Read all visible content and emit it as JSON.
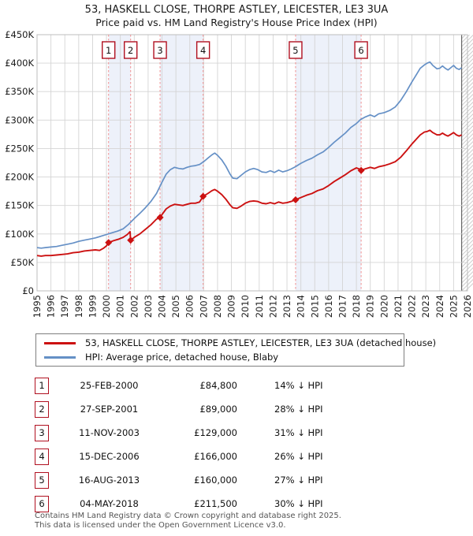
{
  "header": {
    "title_line1": "53, HASKELL CLOSE, THORPE ASTLEY, LEICESTER, LE3 3UA",
    "title_line2": "Price paid vs. HM Land Registry's House Price Index (HPI)"
  },
  "legend": {
    "items": [
      {
        "label": "53, HASKELL CLOSE, THORPE ASTLEY, LEICESTER, LE3 3UA (detached house)",
        "color": "#cc1111"
      },
      {
        "label": "HPI: Average price, detached house, Blaby",
        "color": "#6590c6"
      }
    ]
  },
  "table": {
    "rows": [
      {
        "num": "1",
        "date": "25-FEB-2000",
        "price": "£84,800",
        "hpi": "14% ↓ HPI"
      },
      {
        "num": "2",
        "date": "27-SEP-2001",
        "price": "£89,000",
        "hpi": "28% ↓ HPI"
      },
      {
        "num": "3",
        "date": "11-NOV-2003",
        "price": "£129,000",
        "hpi": "31% ↓ HPI"
      },
      {
        "num": "4",
        "date": "15-DEC-2006",
        "price": "£166,000",
        "hpi": "26% ↓ HPI"
      },
      {
        "num": "5",
        "date": "16-AUG-2013",
        "price": "£160,000",
        "hpi": "27% ↓ HPI"
      },
      {
        "num": "6",
        "date": "04-MAY-2018",
        "price": "£211,500",
        "hpi": "30% ↓ HPI"
      }
    ]
  },
  "footer": {
    "line1": "Contains HM Land Registry data © Crown copyright and database right 2025.",
    "line2": "This data is licensed under the Open Government Licence v3.0."
  },
  "chart_data": {
    "type": "line",
    "title": "53, HASKELL CLOSE, THORPE ASTLEY, LEICESTER, LE3 3UA — Price paid vs. HPI",
    "xlabel": "",
    "ylabel": "",
    "x_range": [
      1995,
      2026
    ],
    "y_range": [
      0,
      450
    ],
    "y_tick_step_k": 50,
    "y_tick_labels": [
      "£0",
      "£50K",
      "£100K",
      "£150K",
      "£200K",
      "£250K",
      "£300K",
      "£350K",
      "£400K",
      "£450K"
    ],
    "x_tick_labels": [
      "1995",
      "1996",
      "1997",
      "1998",
      "1999",
      "2000",
      "2001",
      "2002",
      "2003",
      "2004",
      "2005",
      "2006",
      "2007",
      "2008",
      "2009",
      "2010",
      "2011",
      "2012",
      "2013",
      "2014",
      "2015",
      "2016",
      "2017",
      "2018",
      "2019",
      "2020",
      "2021",
      "2022",
      "2023",
      "2024",
      "2025",
      "2026"
    ],
    "grid": true,
    "legend_position": "below",
    "future_hatch_start": 2025.58,
    "shaded_bands": [
      [
        2000.15,
        2001.74
      ],
      [
        2003.86,
        2006.96
      ],
      [
        2013.62,
        2018.34
      ]
    ],
    "sales": [
      {
        "num": "1",
        "year": 2000.15,
        "price_k": 84.8,
        "date": "25-FEB-2000",
        "pct_below_hpi": 14
      },
      {
        "num": "2",
        "year": 2001.74,
        "price_k": 89,
        "date": "27-SEP-2001",
        "pct_below_hpi": 28
      },
      {
        "num": "3",
        "year": 2003.86,
        "price_k": 129,
        "date": "11-NOV-2003",
        "pct_below_hpi": 31
      },
      {
        "num": "4",
        "year": 2006.96,
        "price_k": 166,
        "date": "15-DEC-2006",
        "pct_below_hpi": 26
      },
      {
        "num": "5",
        "year": 2013.62,
        "price_k": 160,
        "date": "16-AUG-2013",
        "pct_below_hpi": 27
      },
      {
        "num": "6",
        "year": 2018.34,
        "price_k": 211.5,
        "date": "04-MAY-2018",
        "pct_below_hpi": 30
      }
    ],
    "series": [
      {
        "name": "53, HASKELL CLOSE, THORPE ASTLEY, LEICESTER, LE3 3UA (detached house)",
        "color": "#cc1111",
        "points": [
          [
            1995.0,
            62
          ],
          [
            1995.3,
            61
          ],
          [
            1995.6,
            62
          ],
          [
            1996.0,
            62
          ],
          [
            1996.4,
            63
          ],
          [
            1996.8,
            64
          ],
          [
            1997.2,
            65
          ],
          [
            1997.6,
            67
          ],
          [
            1998.0,
            68
          ],
          [
            1998.4,
            70
          ],
          [
            1998.8,
            71
          ],
          [
            1999.2,
            72
          ],
          [
            1999.5,
            71
          ],
          [
            1999.8,
            75
          ],
          [
            2000.0,
            79
          ],
          [
            2000.15,
            84.8
          ],
          [
            2000.5,
            88
          ],
          [
            2000.9,
            91
          ],
          [
            2001.2,
            94
          ],
          [
            2001.5,
            99
          ],
          [
            2001.7,
            104
          ],
          [
            2001.74,
            89
          ],
          [
            2002.0,
            94
          ],
          [
            2002.4,
            100
          ],
          [
            2002.8,
            108
          ],
          [
            2003.2,
            116
          ],
          [
            2003.6,
            126
          ],
          [
            2003.86,
            129
          ],
          [
            2004.0,
            134
          ],
          [
            2004.3,
            144
          ],
          [
            2004.6,
            149
          ],
          [
            2004.9,
            152
          ],
          [
            2005.2,
            151
          ],
          [
            2005.5,
            150
          ],
          [
            2005.8,
            152
          ],
          [
            2006.1,
            154
          ],
          [
            2006.4,
            154
          ],
          [
            2006.7,
            156
          ],
          [
            2006.96,
            166
          ],
          [
            2007.3,
            171
          ],
          [
            2007.6,
            176
          ],
          [
            2007.8,
            178
          ],
          [
            2008.0,
            175
          ],
          [
            2008.3,
            169
          ],
          [
            2008.6,
            161
          ],
          [
            2008.9,
            151
          ],
          [
            2009.1,
            146
          ],
          [
            2009.4,
            145
          ],
          [
            2009.7,
            149
          ],
          [
            2010.0,
            154
          ],
          [
            2010.3,
            157
          ],
          [
            2010.6,
            158
          ],
          [
            2010.9,
            157
          ],
          [
            2011.2,
            154
          ],
          [
            2011.5,
            153
          ],
          [
            2011.8,
            155
          ],
          [
            2012.1,
            153
          ],
          [
            2012.4,
            156
          ],
          [
            2012.7,
            154
          ],
          [
            2013.0,
            155
          ],
          [
            2013.3,
            157
          ],
          [
            2013.62,
            160
          ],
          [
            2014.0,
            164
          ],
          [
            2014.4,
            168
          ],
          [
            2014.8,
            171
          ],
          [
            2015.2,
            176
          ],
          [
            2015.6,
            179
          ],
          [
            2016.0,
            185
          ],
          [
            2016.4,
            192
          ],
          [
            2016.8,
            198
          ],
          [
            2017.2,
            204
          ],
          [
            2017.6,
            211
          ],
          [
            2018.0,
            216
          ],
          [
            2018.2,
            214
          ],
          [
            2018.34,
            211.5
          ],
          [
            2018.6,
            214
          ],
          [
            2019.0,
            217
          ],
          [
            2019.3,
            215
          ],
          [
            2019.6,
            218
          ],
          [
            2020.0,
            220
          ],
          [
            2020.4,
            223
          ],
          [
            2020.8,
            227
          ],
          [
            2021.2,
            235
          ],
          [
            2021.6,
            246
          ],
          [
            2022.0,
            258
          ],
          [
            2022.3,
            266
          ],
          [
            2022.6,
            274
          ],
          [
            2022.9,
            279
          ],
          [
            2023.1,
            280
          ],
          [
            2023.3,
            282
          ],
          [
            2023.5,
            278
          ],
          [
            2023.8,
            274
          ],
          [
            2024.0,
            274
          ],
          [
            2024.2,
            277
          ],
          [
            2024.4,
            274
          ],
          [
            2024.6,
            272
          ],
          [
            2024.8,
            275
          ],
          [
            2025.0,
            278
          ],
          [
            2025.2,
            274
          ],
          [
            2025.4,
            272
          ],
          [
            2025.58,
            274
          ]
        ]
      },
      {
        "name": "HPI: Average price, detached house, Blaby",
        "color": "#6590c6",
        "points": [
          [
            1995.0,
            76
          ],
          [
            1995.3,
            75
          ],
          [
            1995.6,
            76
          ],
          [
            1996.0,
            77
          ],
          [
            1996.4,
            78
          ],
          [
            1996.8,
            80
          ],
          [
            1997.2,
            82
          ],
          [
            1997.6,
            84
          ],
          [
            1998.0,
            87
          ],
          [
            1998.4,
            89
          ],
          [
            1998.8,
            91
          ],
          [
            1999.2,
            93
          ],
          [
            1999.6,
            96
          ],
          [
            2000.0,
            99
          ],
          [
            2000.4,
            102
          ],
          [
            2000.8,
            105
          ],
          [
            2001.2,
            109
          ],
          [
            2001.6,
            117
          ],
          [
            2002.0,
            127
          ],
          [
            2002.4,
            136
          ],
          [
            2002.8,
            146
          ],
          [
            2003.2,
            157
          ],
          [
            2003.6,
            171
          ],
          [
            2004.0,
            191
          ],
          [
            2004.3,
            205
          ],
          [
            2004.6,
            213
          ],
          [
            2004.9,
            217
          ],
          [
            2005.2,
            215
          ],
          [
            2005.5,
            214
          ],
          [
            2005.8,
            217
          ],
          [
            2006.1,
            219
          ],
          [
            2006.4,
            220
          ],
          [
            2006.7,
            222
          ],
          [
            2007.0,
            227
          ],
          [
            2007.3,
            233
          ],
          [
            2007.6,
            239
          ],
          [
            2007.8,
            242
          ],
          [
            2008.0,
            238
          ],
          [
            2008.3,
            230
          ],
          [
            2008.6,
            219
          ],
          [
            2008.9,
            205
          ],
          [
            2009.1,
            198
          ],
          [
            2009.4,
            197
          ],
          [
            2009.7,
            203
          ],
          [
            2010.0,
            209
          ],
          [
            2010.3,
            213
          ],
          [
            2010.6,
            215
          ],
          [
            2010.9,
            213
          ],
          [
            2011.2,
            209
          ],
          [
            2011.5,
            208
          ],
          [
            2011.8,
            211
          ],
          [
            2012.1,
            208
          ],
          [
            2012.4,
            212
          ],
          [
            2012.7,
            209
          ],
          [
            2013.0,
            211
          ],
          [
            2013.3,
            214
          ],
          [
            2013.6,
            218
          ],
          [
            2014.0,
            224
          ],
          [
            2014.4,
            229
          ],
          [
            2014.8,
            233
          ],
          [
            2015.2,
            239
          ],
          [
            2015.6,
            244
          ],
          [
            2016.0,
            252
          ],
          [
            2016.4,
            261
          ],
          [
            2016.8,
            269
          ],
          [
            2017.2,
            277
          ],
          [
            2017.6,
            287
          ],
          [
            2018.0,
            294
          ],
          [
            2018.3,
            301
          ],
          [
            2018.6,
            305
          ],
          [
            2019.0,
            309
          ],
          [
            2019.3,
            306
          ],
          [
            2019.6,
            311
          ],
          [
            2020.0,
            313
          ],
          [
            2020.4,
            317
          ],
          [
            2020.8,
            323
          ],
          [
            2021.2,
            335
          ],
          [
            2021.6,
            350
          ],
          [
            2022.0,
            367
          ],
          [
            2022.3,
            379
          ],
          [
            2022.6,
            391
          ],
          [
            2022.9,
            397
          ],
          [
            2023.1,
            400
          ],
          [
            2023.3,
            402
          ],
          [
            2023.5,
            396
          ],
          [
            2023.8,
            390
          ],
          [
            2024.0,
            391
          ],
          [
            2024.2,
            395
          ],
          [
            2024.4,
            391
          ],
          [
            2024.6,
            388
          ],
          [
            2024.8,
            392
          ],
          [
            2025.0,
            396
          ],
          [
            2025.2,
            391
          ],
          [
            2025.4,
            389
          ],
          [
            2025.58,
            392
          ]
        ]
      }
    ],
    "colors": {
      "grid": "#d4d4d4",
      "frame": "#bdbdbd",
      "sale_dash": "#f08f8f",
      "band_fill": "#edf1fa",
      "hatch_line": "#bbbbbb",
      "hatch_edge": "#666666",
      "marker_box_border": "#b01020",
      "text": "#1a1a1a"
    }
  }
}
